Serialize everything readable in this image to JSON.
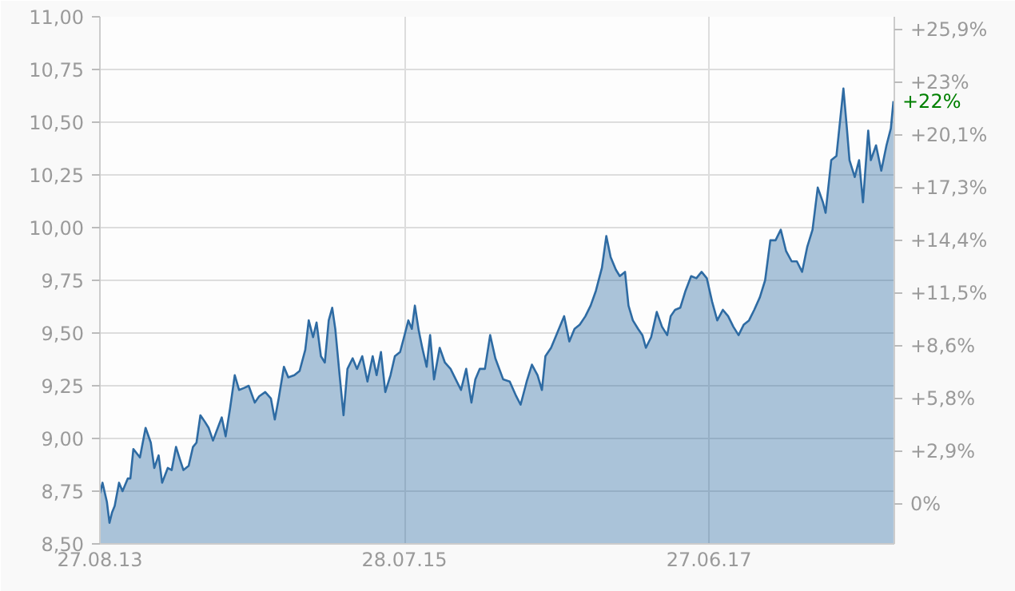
{
  "chart_data": {
    "type": "area",
    "xlim": [
      "2013-08-27",
      "2018-08-27"
    ],
    "xticks": [
      {
        "value": "2013-08-27",
        "label": "27.08.13"
      },
      {
        "value": "2015-07-28",
        "label": "28.07.15"
      },
      {
        "value": "2017-06-27",
        "label": "27.06.17"
      }
    ],
    "ylim": [
      8.5,
      11.0
    ],
    "yticks": [
      {
        "value": 8.5,
        "label": "8,50"
      },
      {
        "value": 8.75,
        "label": "8,75"
      },
      {
        "value": 9.0,
        "label": "9,00"
      },
      {
        "value": 9.25,
        "label": "9,25"
      },
      {
        "value": 9.5,
        "label": "9,50"
      },
      {
        "value": 9.75,
        "label": "9,75"
      },
      {
        "value": 10.0,
        "label": "10,00"
      },
      {
        "value": 10.25,
        "label": "10,25"
      },
      {
        "value": 10.5,
        "label": "10,50"
      },
      {
        "value": 10.75,
        "label": "10,75"
      },
      {
        "value": 11.0,
        "label": "11,00"
      }
    ],
    "y2lim": [
      -2.19,
      26.58
    ],
    "y2ticks": [
      {
        "value": 0,
        "label": "0%"
      },
      {
        "value": 2.88,
        "label": "+2,9%"
      },
      {
        "value": 5.75,
        "label": "+5,8%"
      },
      {
        "value": 8.63,
        "label": "+8,6%"
      },
      {
        "value": 11.51,
        "label": "+11,5%"
      },
      {
        "value": 14.38,
        "label": "+14,4%"
      },
      {
        "value": 17.26,
        "label": "+17,3%"
      },
      {
        "value": 20.14,
        "label": "+20,1%"
      },
      {
        "value": 23.01,
        "label": "+23%"
      },
      {
        "value": 25.89,
        "label": "+25,9%"
      }
    ],
    "grid": true,
    "annotations": [
      "+22%"
    ],
    "series": [
      {
        "color": "#2e6ba3",
        "x": [
          "2013-08-27",
          "2013-09-02",
          "2013-09-12",
          "2013-09-18",
          "2013-09-24",
          "2013-09-30",
          "2013-10-10",
          "2013-10-18",
          "2013-10-30",
          "2013-11-05",
          "2013-11-12",
          "2013-11-27",
          "2013-12-10",
          "2013-12-22",
          "2013-12-30",
          "2014-01-09",
          "2014-01-17",
          "2014-01-30",
          "2014-02-08",
          "2014-02-18",
          "2014-02-27",
          "2014-03-07",
          "2014-03-19",
          "2014-03-29",
          "2014-04-06",
          "2014-04-15",
          "2014-04-25",
          "2014-05-04",
          "2014-05-14",
          "2014-05-25",
          "2014-06-03",
          "2014-06-12",
          "2014-06-22",
          "2014-07-03",
          "2014-07-13",
          "2014-07-25",
          "2014-08-04",
          "2014-08-18",
          "2014-08-28",
          "2014-09-11",
          "2014-09-24",
          "2014-10-03",
          "2014-10-12",
          "2014-10-24",
          "2014-11-03",
          "2014-11-17",
          "2014-11-29",
          "2014-12-12",
          "2014-12-20",
          "2014-12-30",
          "2015-01-07",
          "2015-01-17",
          "2015-01-26",
          "2015-02-04",
          "2015-02-12",
          "2015-02-19",
          "2015-03-01",
          "2015-03-10",
          "2015-03-19",
          "2015-03-31",
          "2015-04-10",
          "2015-04-22",
          "2015-05-04",
          "2015-05-16",
          "2015-05-25",
          "2015-06-04",
          "2015-06-14",
          "2015-06-26",
          "2015-07-06",
          "2015-07-18",
          "2015-07-27",
          "2015-08-06",
          "2015-08-14",
          "2015-08-21",
          "2015-08-30",
          "2015-09-07",
          "2015-09-17",
          "2015-09-25",
          "2015-10-04",
          "2015-10-17",
          "2015-10-29",
          "2015-11-11",
          "2015-11-23",
          "2015-12-05",
          "2015-12-17",
          "2015-12-29",
          "2016-01-07",
          "2016-01-17",
          "2016-01-29",
          "2016-02-10",
          "2016-02-22",
          "2016-03-11",
          "2016-03-26",
          "2016-04-10",
          "2016-04-20",
          "2016-05-04",
          "2016-05-16",
          "2016-05-29",
          "2016-06-08",
          "2016-06-16",
          "2016-06-29",
          "2016-07-11",
          "2016-07-29",
          "2016-08-10",
          "2016-08-22",
          "2016-09-03",
          "2016-09-16",
          "2016-09-28",
          "2016-10-10",
          "2016-10-24",
          "2016-11-03",
          "2016-11-13",
          "2016-11-25",
          "2016-12-04",
          "2016-12-16",
          "2016-12-24",
          "2017-01-03",
          "2017-01-15",
          "2017-01-25",
          "2017-02-02",
          "2017-02-14",
          "2017-02-27",
          "2017-03-11",
          "2017-03-23",
          "2017-03-31",
          "2017-04-10",
          "2017-04-22",
          "2017-05-04",
          "2017-05-17",
          "2017-05-29",
          "2017-06-10",
          "2017-06-22",
          "2017-07-04",
          "2017-07-16",
          "2017-07-29",
          "2017-08-10",
          "2017-08-22",
          "2017-09-03",
          "2017-09-15",
          "2017-09-27",
          "2017-10-09",
          "2017-10-22",
          "2017-11-03",
          "2017-11-15",
          "2017-11-27",
          "2017-12-09",
          "2017-12-21",
          "2018-01-03",
          "2018-01-15",
          "2018-01-27",
          "2018-02-08",
          "2018-02-20",
          "2018-03-04",
          "2018-03-16",
          "2018-03-22",
          "2018-04-04",
          "2018-04-16",
          "2018-05-02",
          "2018-05-10",
          "2018-05-16",
          "2018-05-28",
          "2018-06-07",
          "2018-06-16",
          "2018-06-28",
          "2018-07-04",
          "2018-07-16",
          "2018-07-28",
          "2018-08-09",
          "2018-08-19",
          "2018-08-25"
        ],
        "values": [
          8.74,
          8.79,
          8.7,
          8.6,
          8.65,
          8.68,
          8.79,
          8.75,
          8.81,
          8.81,
          8.95,
          8.91,
          9.05,
          8.98,
          8.86,
          8.92,
          8.79,
          8.86,
          8.85,
          8.96,
          8.9,
          8.85,
          8.87,
          8.96,
          8.98,
          9.11,
          9.08,
          9.05,
          8.99,
          9.05,
          9.1,
          9.01,
          9.14,
          9.3,
          9.23,
          9.24,
          9.25,
          9.17,
          9.2,
          9.22,
          9.19,
          9.09,
          9.19,
          9.34,
          9.29,
          9.3,
          9.32,
          9.42,
          9.56,
          9.48,
          9.55,
          9.39,
          9.36,
          9.56,
          9.62,
          9.52,
          9.3,
          9.11,
          9.33,
          9.38,
          9.33,
          9.39,
          9.27,
          9.39,
          9.3,
          9.41,
          9.22,
          9.3,
          9.39,
          9.41,
          9.48,
          9.56,
          9.52,
          9.63,
          9.51,
          9.43,
          9.34,
          9.49,
          9.28,
          9.43,
          9.36,
          9.33,
          9.28,
          9.23,
          9.33,
          9.17,
          9.28,
          9.33,
          9.33,
          9.49,
          9.38,
          9.28,
          9.27,
          9.2,
          9.16,
          9.27,
          9.35,
          9.3,
          9.23,
          9.39,
          9.43,
          9.49,
          9.58,
          9.46,
          9.52,
          9.54,
          9.58,
          9.63,
          9.7,
          9.81,
          9.96,
          9.86,
          9.8,
          9.77,
          9.79,
          9.63,
          9.56,
          9.52,
          9.49,
          9.43,
          9.48,
          9.6,
          9.53,
          9.49,
          9.58,
          9.61,
          9.62,
          9.7,
          9.77,
          9.76,
          9.79,
          9.76,
          9.65,
          9.56,
          9.61,
          9.58,
          9.53,
          9.49,
          9.54,
          9.56,
          9.61,
          9.67,
          9.75,
          9.94,
          9.94,
          9.99,
          9.89,
          9.84,
          9.84,
          9.79,
          9.91,
          9.99,
          10.19,
          10.12,
          10.07,
          10.32,
          10.34,
          10.66,
          10.47,
          10.32,
          10.24,
          10.32,
          10.12,
          10.46,
          10.32,
          10.39,
          10.27,
          10.39,
          10.47,
          10.6
        ]
      }
    ]
  }
}
